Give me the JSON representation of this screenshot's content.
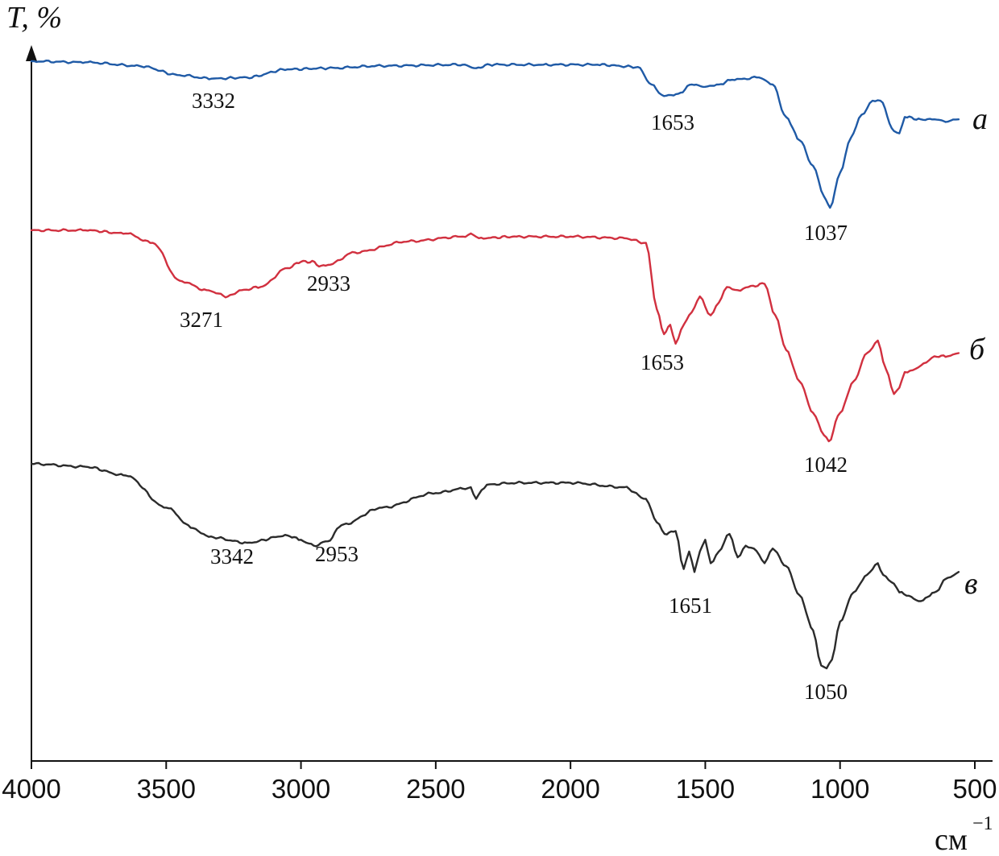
{
  "chart_data": {
    "type": "line",
    "ylabel": "T, %",
    "xlabel": "см",
    "xlabel_exponent": "−1",
    "xlim": [
      4000,
      500
    ],
    "x_ticks": [
      4000,
      3500,
      3000,
      2500,
      2000,
      1500,
      1000,
      500
    ],
    "x_tick_labels": [
      "4000",
      "3500",
      "3000",
      "2500",
      "2000",
      "1500",
      "1000",
      "500"
    ],
    "y_ticks_shown": false,
    "grid": false,
    "legend": "none; curves labelled at right end",
    "y_units": "relative transmittance (arbitrary, curves offset vertically)",
    "series": [
      {
        "name": "а",
        "color": "#1f5aa6",
        "x": [
          4000,
          3800,
          3600,
          3450,
          3332,
          3200,
          3050,
          2900,
          2700,
          2400,
          2350,
          2300,
          2100,
          1900,
          1750,
          1700,
          1653,
          1600,
          1550,
          1500,
          1450,
          1400,
          1300,
          1250,
          1200,
          1150,
          1100,
          1060,
          1037,
          1000,
          960,
          920,
          880,
          850,
          800,
          780,
          760,
          700,
          650,
          600,
          560
        ],
        "y": [
          100,
          99.5,
          98,
          94,
          92.5,
          93,
          96.5,
          97,
          98,
          98.5,
          97,
          98.5,
          98.5,
          98.5,
          97.5,
          90,
          85,
          86,
          90,
          89,
          90,
          92,
          93,
          90,
          76,
          66,
          55,
          42,
          37,
          52,
          67,
          77,
          83,
          83,
          70,
          69,
          76,
          75,
          75,
          74,
          75
        ],
        "peak_labels": [
          "3332",
          "1653",
          "1037"
        ]
      },
      {
        "name": "б",
        "color": "#d1303f",
        "x": [
          4000,
          3800,
          3650,
          3550,
          3450,
          3350,
          3271,
          3220,
          3150,
          3050,
          3000,
          2950,
          2933,
          2900,
          2800,
          2600,
          2400,
          2370,
          2340,
          2200,
          2000,
          1800,
          1720,
          1680,
          1653,
          1630,
          1610,
          1580,
          1550,
          1520,
          1480,
          1450,
          1420,
          1380,
          1340,
          1280,
          1240,
          1200,
          1150,
          1100,
          1060,
          1042,
          1000,
          950,
          900,
          860,
          830,
          800,
          780,
          760,
          720,
          680,
          650,
          600,
          560
        ],
        "y": [
          100,
          100,
          99,
          96,
          84,
          81,
          79,
          81,
          82,
          88,
          90,
          90,
          88.5,
          89,
          93,
          96.5,
          98,
          99,
          97.5,
          98,
          98,
          97.5,
          96,
          75,
          67,
          70,
          64,
          70,
          74,
          79,
          73,
          77,
          82,
          81,
          82,
          83,
          73,
          62,
          52,
          42,
          35,
          33,
          42,
          52,
          61,
          65,
          56,
          48,
          50,
          55,
          56,
          58,
          60,
          60,
          61
        ],
        "peak_labels": [
          "3271",
          "2933",
          "1653",
          "1042"
        ]
      },
      {
        "name": "в",
        "color": "#2b2b2b",
        "x": [
          4000,
          3800,
          3650,
          3500,
          3400,
          3342,
          3200,
          3050,
          3000,
          2980,
          2953,
          2900,
          2850,
          2700,
          2500,
          2400,
          2370,
          2350,
          2330,
          2300,
          2200,
          2000,
          1800,
          1720,
          1680,
          1651,
          1610,
          1580,
          1560,
          1540,
          1520,
          1500,
          1480,
          1450,
          1410,
          1380,
          1350,
          1320,
          1280,
          1250,
          1200,
          1150,
          1100,
          1070,
          1050,
          1030,
          1000,
          950,
          900,
          860,
          840,
          800,
          780,
          700,
          650,
          600,
          560
        ],
        "y": [
          100,
          99,
          96,
          85,
          78,
          75,
          73,
          75.5,
          74,
          73,
          72,
          73.5,
          79,
          85,
          90,
          91.5,
          92,
          88,
          91,
          93,
          93.5,
          93.5,
          92,
          88,
          80,
          76,
          77,
          64,
          70,
          63,
          70,
          74,
          66,
          70,
          76,
          68,
          72,
          71,
          66,
          71,
          65,
          55,
          43,
          31,
          30,
          33,
          46,
          56,
          62,
          66,
          62,
          59,
          56,
          53,
          56,
          61,
          63
        ],
        "peak_labels": [
          "3342",
          "2953",
          "1651",
          "1050"
        ]
      }
    ]
  }
}
